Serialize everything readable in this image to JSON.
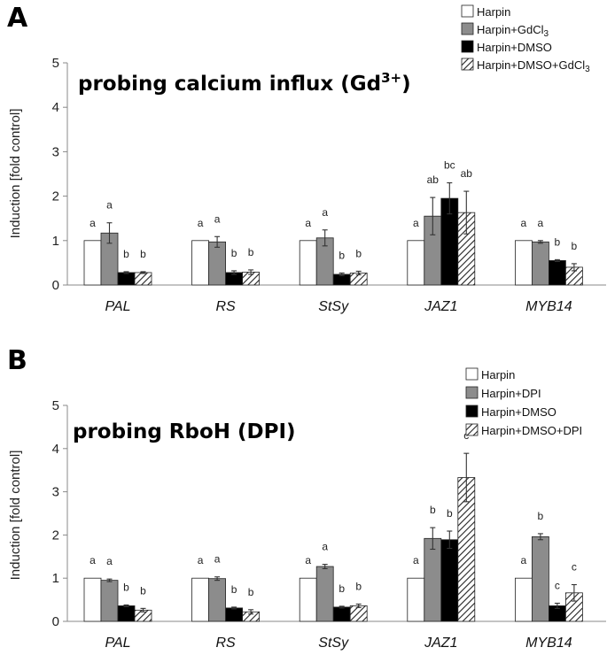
{
  "chart_data": [
    {
      "type": "bar",
      "panel_label": "A",
      "title": "probing calcium influx (Gd",
      "title_superscript": "3+",
      "title_suffix": ")",
      "ylabel": "Induction [fold control]",
      "xlabel": "",
      "ylim": [
        0,
        5
      ],
      "yticks": [
        "0",
        "1",
        "2",
        "3",
        "4",
        "5"
      ],
      "categories": [
        "PAL",
        "RS",
        "StSy",
        "JAZ1",
        "MYB14"
      ],
      "legend_position": "top-right",
      "series": [
        {
          "name": "Harpin",
          "legend_label": "Harpin",
          "legend_sub": "",
          "style": "white",
          "values": [
            1.0,
            1.0,
            1.0,
            1.0,
            1.0
          ],
          "errors": [
            0,
            0,
            0,
            0,
            0
          ],
          "letters": [
            "a",
            "a",
            "a",
            "a",
            "a"
          ]
        },
        {
          "name": "Harpin+GdCl3",
          "legend_label": "Harpin+GdCl",
          "legend_sub": "3",
          "style": "gray",
          "values": [
            1.17,
            0.97,
            1.06,
            1.55,
            0.97
          ],
          "errors": [
            0.23,
            0.12,
            0.18,
            0.42,
            0.03
          ],
          "letters": [
            "a",
            "a",
            "a",
            "ab",
            "a"
          ]
        },
        {
          "name": "Harpin+DMSO",
          "legend_label": "Harpin+DMSO",
          "legend_sub": "",
          "style": "black",
          "values": [
            0.28,
            0.28,
            0.24,
            1.95,
            0.55
          ],
          "errors": [
            0.02,
            0.04,
            0.03,
            0.35,
            0.02
          ],
          "letters": [
            "b",
            "b",
            "b",
            "bc",
            "b"
          ]
        },
        {
          "name": "Harpin+DMSO+GdCl3",
          "legend_label": "Harpin+DMSO+GdCl",
          "legend_sub": "3",
          "style": "hatch",
          "values": [
            0.28,
            0.29,
            0.27,
            1.63,
            0.4
          ],
          "errors": [
            0.02,
            0.05,
            0.04,
            0.48,
            0.08
          ],
          "letters": [
            "b",
            "b",
            "b",
            "ab",
            "b"
          ]
        }
      ]
    },
    {
      "type": "bar",
      "panel_label": "B",
      "title": "probing RboH (DPI)",
      "title_superscript": "",
      "title_suffix": "",
      "ylabel": "Induction [fold control]",
      "xlabel": "",
      "ylim": [
        0,
        5
      ],
      "yticks": [
        "0",
        "1",
        "2",
        "3",
        "4",
        "5"
      ],
      "categories": [
        "PAL",
        "RS",
        "StSy",
        "JAZ1",
        "MYB14"
      ],
      "legend_position": "top-right",
      "series": [
        {
          "name": "Harpin",
          "legend_label": "Harpin",
          "legend_sub": "",
          "style": "white",
          "values": [
            1.0,
            1.0,
            1.0,
            1.0,
            1.0
          ],
          "errors": [
            0,
            0,
            0,
            0,
            0
          ],
          "letters": [
            "a",
            "a",
            "a",
            "a",
            "a"
          ]
        },
        {
          "name": "Harpin+DPI",
          "legend_label": "Harpin+DPI",
          "legend_sub": "",
          "style": "gray",
          "values": [
            0.95,
            0.99,
            1.27,
            1.92,
            1.96
          ],
          "errors": [
            0.03,
            0.04,
            0.05,
            0.25,
            0.07
          ],
          "letters": [
            "a",
            "a",
            "a",
            "b",
            "b"
          ]
        },
        {
          "name": "Harpin+DMSO",
          "legend_label": "Harpin+DMSO",
          "legend_sub": "",
          "style": "black",
          "values": [
            0.36,
            0.31,
            0.33,
            1.89,
            0.36
          ],
          "errors": [
            0.02,
            0.02,
            0.02,
            0.2,
            0.06
          ],
          "letters": [
            "b",
            "b",
            "b",
            "b",
            "c"
          ]
        },
        {
          "name": "Harpin+DMSO+DPI",
          "legend_label": "Harpin+DMSO+DPI",
          "legend_sub": "",
          "style": "hatch",
          "values": [
            0.26,
            0.22,
            0.36,
            3.33,
            0.66
          ],
          "errors": [
            0.04,
            0.05,
            0.04,
            0.56,
            0.19
          ],
          "letters": [
            "b",
            "b",
            "b",
            "c",
            "c"
          ]
        }
      ]
    }
  ]
}
